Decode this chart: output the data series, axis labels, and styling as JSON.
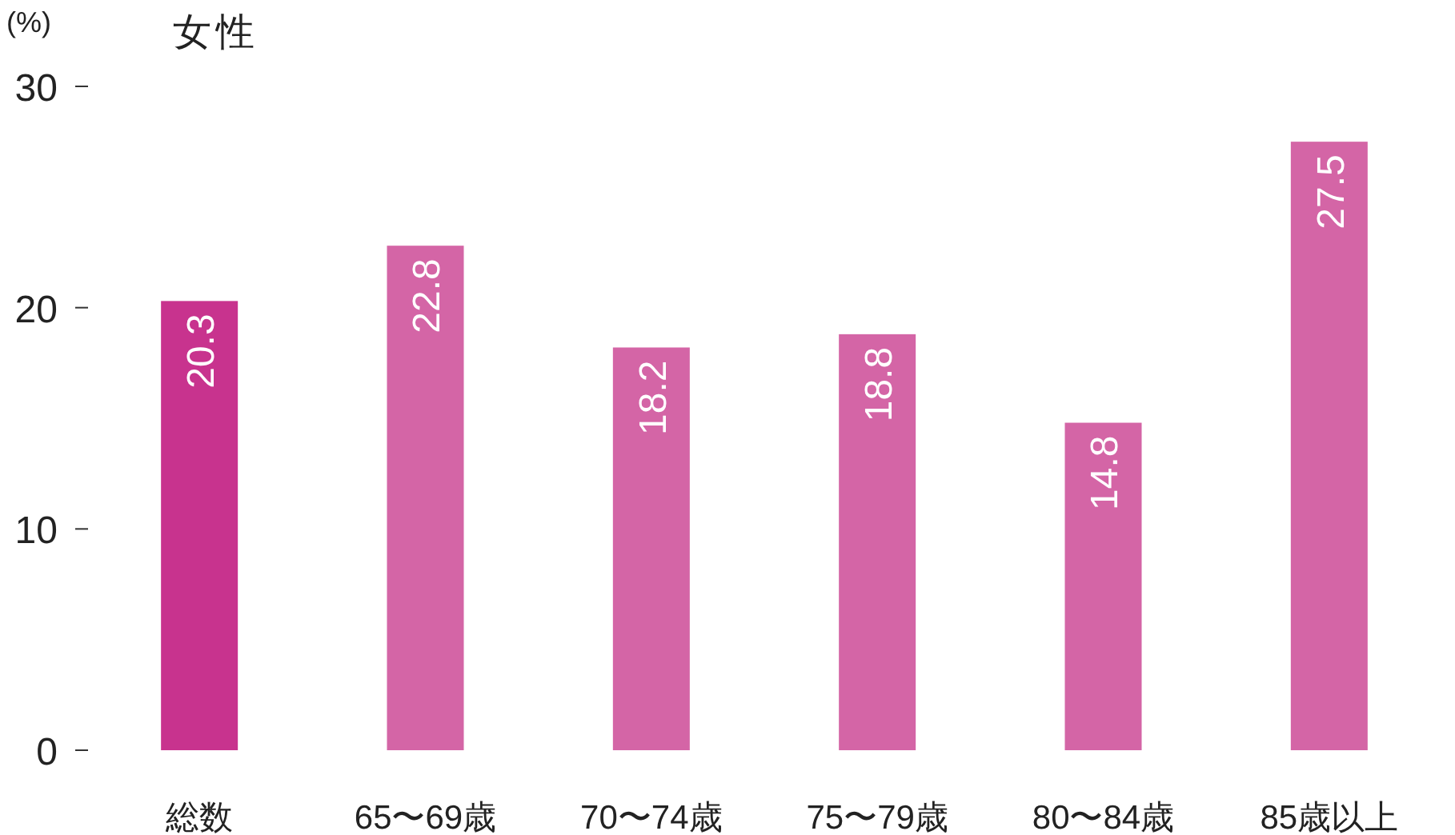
{
  "chart_data": {
    "type": "bar",
    "title": "女性",
    "ylabel": "(%)",
    "categories": [
      "総数",
      "65〜69歳",
      "70〜74歳",
      "75〜79歳",
      "80〜84歳",
      "85歳以上"
    ],
    "values": [
      20.3,
      22.8,
      18.2,
      18.8,
      14.8,
      27.5
    ],
    "colors": [
      "#c8338e",
      "#d465a6",
      "#d465a6",
      "#d465a6",
      "#d465a6",
      "#d465a6"
    ],
    "ylim": [
      0,
      30
    ],
    "yticks": [
      0,
      10,
      20,
      30
    ],
    "data_labels": true
  }
}
